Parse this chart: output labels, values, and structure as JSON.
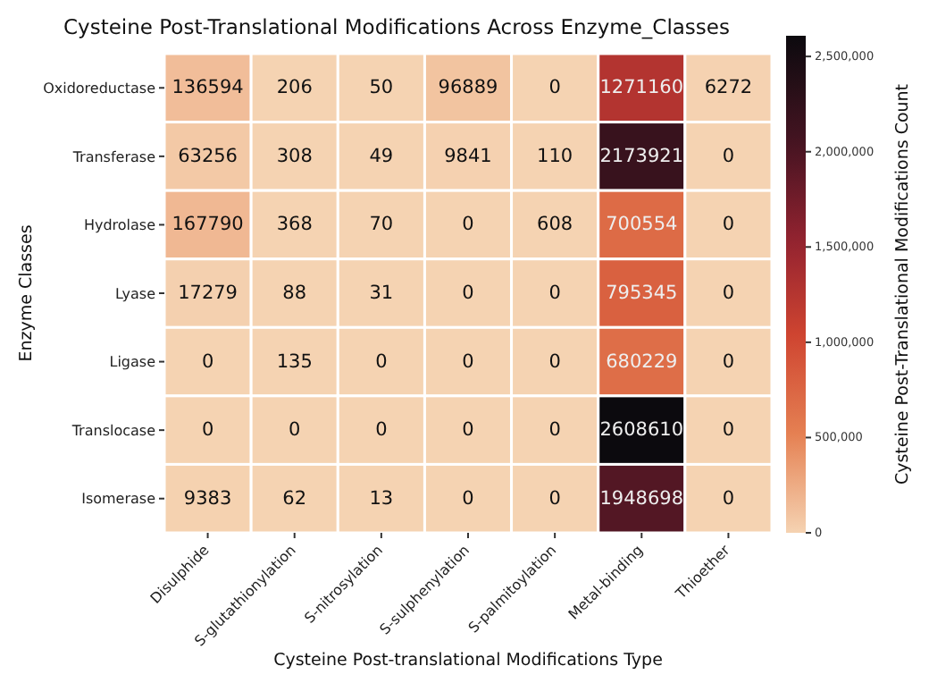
{
  "chart_data": {
    "type": "heatmap",
    "title": "Cysteine Post-Translational Modifications Across Enzyme_Classes",
    "xlabel": "Cysteine Post-translational Modifications Type",
    "ylabel": "Enzyme Classes",
    "clabel": "Cysteine Post-Translational Modifications Count",
    "categories": [
      "Disulphide",
      "S-glutathionylation",
      "S-nitrosylation",
      "S-sulphenylation",
      "S-palmitoylation",
      "Metal-binding",
      "Thioether"
    ],
    "y_categories": [
      "Oxidoreductase",
      "Transferase",
      "Hydrolase",
      "Lyase",
      "Ligase",
      "Translocase",
      "Isomerase"
    ],
    "cells": [
      [
        136594,
        206,
        50,
        96889,
        0,
        1271160,
        6272
      ],
      [
        63256,
        308,
        49,
        9841,
        110,
        2173921,
        0
      ],
      [
        167790,
        368,
        70,
        0,
        608,
        700554,
        0
      ],
      [
        17279,
        88,
        31,
        0,
        0,
        795345,
        0
      ],
      [
        0,
        135,
        0,
        0,
        0,
        680229,
        0
      ],
      [
        0,
        0,
        0,
        0,
        0,
        2608610,
        0
      ],
      [
        9383,
        62,
        13,
        0,
        0,
        1948698,
        0
      ]
    ],
    "data_labels": true,
    "clim": [
      0,
      2608610
    ],
    "cticks": [
      0,
      {
        "value": 500000,
        "label": "500,000"
      },
      {
        "value": 1000000,
        "label": "1,000,000"
      },
      {
        "value": 1500000,
        "label": "1,500,000"
      },
      {
        "value": 2000000,
        "label": "2,000,000"
      },
      {
        "value": 2500000,
        "label": "2,500,000"
      }
    ]
  }
}
